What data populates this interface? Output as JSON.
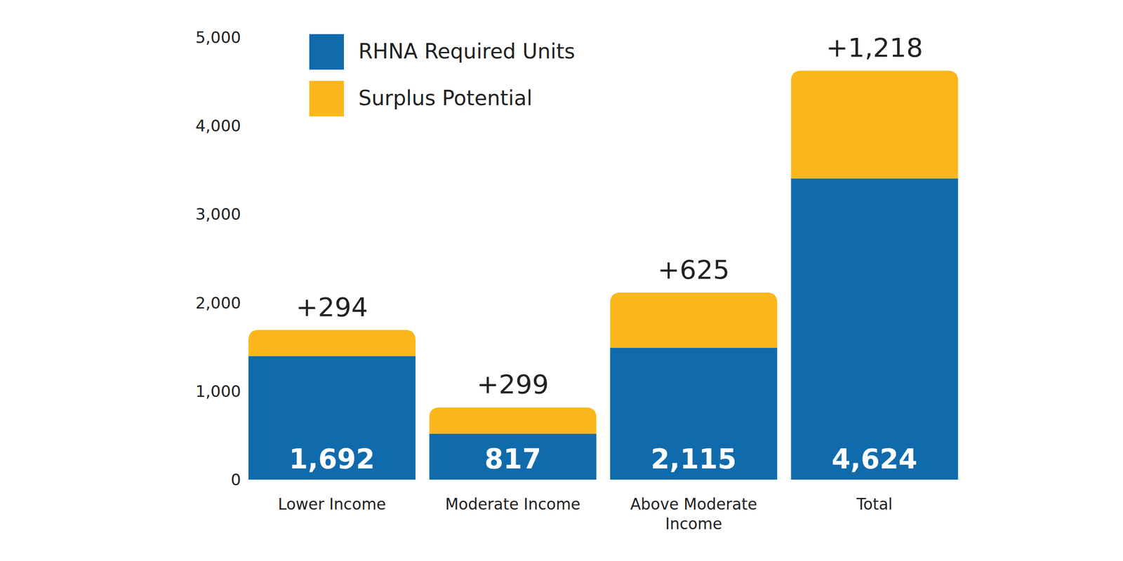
{
  "chart_data": {
    "type": "bar",
    "stacked": true,
    "data_labels": true,
    "legend": "top-left",
    "grid": false,
    "categories": [
      "Lower Income",
      "Moderate Income",
      "Above Moderate Income",
      "Total"
    ],
    "series": [
      {
        "name": "RHNA Required Units",
        "color": "#106bad",
        "values": [
          1398,
          518,
          1490,
          3406
        ]
      },
      {
        "name": "Surplus Potential",
        "color": "#fbb71b",
        "values": [
          294,
          299,
          625,
          1218
        ],
        "value_labels": [
          "+294",
          "+299",
          "+625",
          "+1,218"
        ]
      }
    ],
    "totals": [
      1692,
      817,
      2115,
      4624
    ],
    "total_labels": [
      "1,692",
      "817",
      "2,115",
      "4,624"
    ],
    "ylim": [
      0,
      5000
    ],
    "yticks": [
      0,
      {
        "value": 1000,
        "label": "1,000"
      },
      {
        "value": 2000,
        "label": "2,000"
      },
      {
        "value": 3000,
        "label": "3,000"
      },
      {
        "value": 4000,
        "label": "4,000"
      },
      {
        "value": 5000,
        "label": "5,000"
      }
    ]
  }
}
